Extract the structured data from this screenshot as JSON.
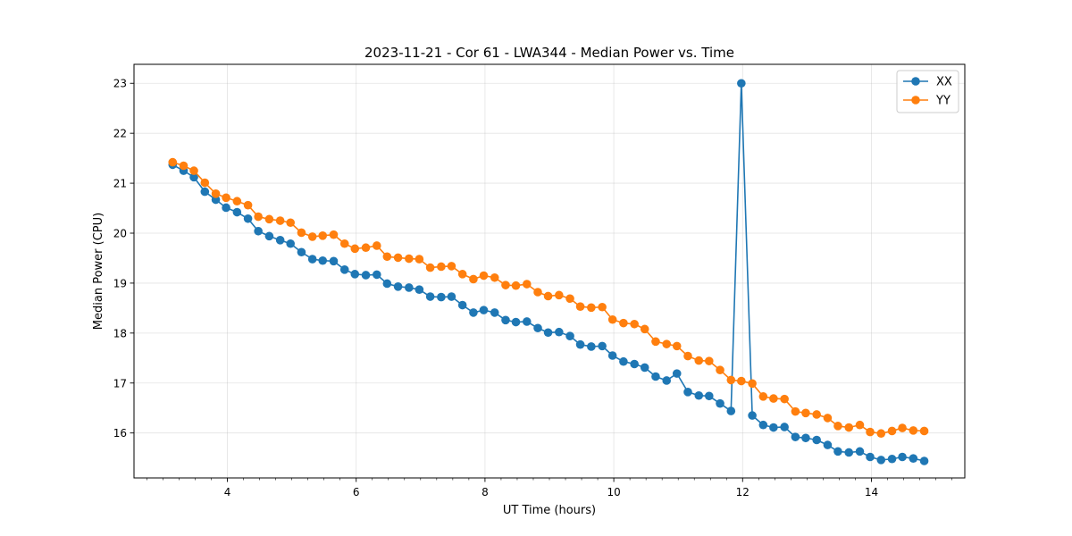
{
  "chart_data": {
    "type": "line",
    "title": "2023-11-21 - Cor 61 - LWA344 - Median Power vs. Time",
    "xlabel": "UT Time (hours)",
    "ylabel": "Median Power (CPU)",
    "xlim": [
      2.55,
      15.45
    ],
    "ylim": [
      15.1,
      23.38
    ],
    "x_major_ticks": [
      4,
      6,
      8,
      10,
      12,
      14
    ],
    "x_minor_step": 0.25,
    "y_ticks": [
      16,
      17,
      18,
      19,
      20,
      21,
      22,
      23
    ],
    "grid": true,
    "legend_position": "top-right",
    "x": [
      3.15,
      3.32,
      3.48,
      3.65,
      3.82,
      3.98,
      4.15,
      4.32,
      4.48,
      4.65,
      4.82,
      4.98,
      5.15,
      5.32,
      5.48,
      5.65,
      5.82,
      5.98,
      6.15,
      6.32,
      6.48,
      6.65,
      6.82,
      6.98,
      7.15,
      7.32,
      7.48,
      7.65,
      7.82,
      7.98,
      8.15,
      8.32,
      8.48,
      8.65,
      8.82,
      8.98,
      9.15,
      9.32,
      9.48,
      9.65,
      9.82,
      9.98,
      10.15,
      10.32,
      10.48,
      10.65,
      10.82,
      10.98,
      11.15,
      11.32,
      11.48,
      11.65,
      11.82,
      11.98,
      12.15,
      12.32,
      12.48,
      12.65,
      12.82,
      12.98,
      13.15,
      13.32,
      13.48,
      13.65,
      13.82,
      13.98,
      14.15,
      14.32,
      14.48,
      14.65,
      14.82
    ],
    "series": [
      {
        "name": "XX",
        "color": "#1f77b4",
        "values": [
          21.37,
          21.25,
          21.12,
          20.83,
          20.67,
          20.51,
          20.42,
          20.29,
          20.04,
          19.94,
          19.86,
          19.79,
          19.62,
          19.48,
          19.45,
          19.44,
          19.27,
          19.18,
          19.16,
          19.17,
          18.99,
          18.93,
          18.91,
          18.87,
          18.73,
          18.72,
          18.73,
          18.56,
          18.41,
          18.46,
          18.41,
          18.26,
          18.22,
          18.23,
          18.1,
          18.01,
          18.02,
          17.94,
          17.77,
          17.73,
          17.74,
          17.55,
          17.43,
          17.38,
          17.31,
          17.13,
          17.05,
          17.19,
          16.82,
          16.75,
          16.74,
          16.59,
          16.44,
          23.0,
          16.35,
          16.16,
          16.11,
          16.12,
          15.92,
          15.9,
          15.86,
          15.76,
          15.63,
          15.61,
          15.63,
          15.52,
          15.46,
          15.48,
          15.52,
          15.49,
          15.44
        ]
      },
      {
        "name": "YY",
        "color": "#ff7f0e",
        "values": [
          21.42,
          21.35,
          21.25,
          21.01,
          20.79,
          20.71,
          20.64,
          20.56,
          20.33,
          20.28,
          20.25,
          20.21,
          20.01,
          19.93,
          19.95,
          19.97,
          19.79,
          19.69,
          19.71,
          19.75,
          19.53,
          19.51,
          19.49,
          19.48,
          19.31,
          19.33,
          19.34,
          19.18,
          19.08,
          19.15,
          19.11,
          18.96,
          18.95,
          18.98,
          18.82,
          18.74,
          18.76,
          18.69,
          18.53,
          18.51,
          18.52,
          18.27,
          18.2,
          18.18,
          18.08,
          17.83,
          17.78,
          17.74,
          17.54,
          17.45,
          17.44,
          17.26,
          17.06,
          17.04,
          16.99,
          16.73,
          16.69,
          16.68,
          16.43,
          16.4,
          16.37,
          16.3,
          16.14,
          16.11,
          16.16,
          16.02,
          15.99,
          16.04,
          16.1,
          16.05,
          16.04
        ]
      }
    ]
  }
}
